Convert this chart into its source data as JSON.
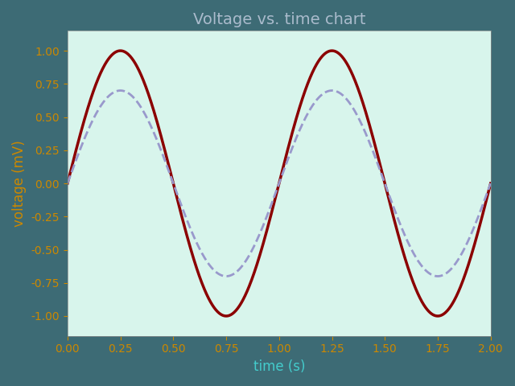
{
  "title": "Voltage vs. time chart",
  "xlabel": "time (s)",
  "ylabel": "voltage (mV)",
  "xlim": [
    0.0,
    2.0
  ],
  "ylim": [
    -1.15,
    1.15
  ],
  "xticks": [
    0.0,
    0.25,
    0.5,
    0.75,
    1.0,
    1.25,
    1.5,
    1.75,
    2.0
  ],
  "yticks": [
    -1.0,
    -0.75,
    -0.5,
    -0.25,
    0.0,
    0.25,
    0.5,
    0.75,
    1.0
  ],
  "line1_color": "#8b0000",
  "line1_lw": 2.5,
  "line1_amplitude": 1.0,
  "line1_freq": 1.0,
  "line1_phase": 0.0,
  "line2_color": "#9999cc",
  "line2_lw": 2.0,
  "line2_amplitude": 0.7,
  "line2_freq": 1.0,
  "line2_phase": 0.0,
  "bg_color": "#3d6b75",
  "plot_bg_color": "#d8f5ec",
  "title_color": "#aabbcc",
  "ytick_color": "#cc8800",
  "xtick_color": "#cc8800",
  "ylabel_color": "#cc8800",
  "xlabel_color": "#44cccc",
  "title_fontsize": 14,
  "label_fontsize": 12,
  "tick_fontsize": 10
}
